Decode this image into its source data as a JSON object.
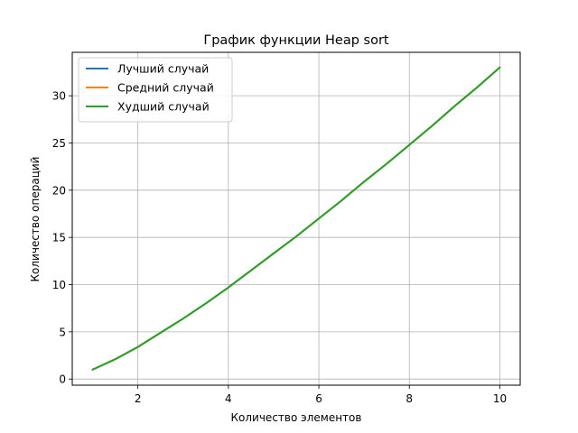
{
  "chart_data": {
    "type": "line",
    "title": "График функции Heap sort",
    "xlabel": "Количество элементов",
    "ylabel": "Количество операций",
    "xlim": [
      0.55,
      10.45
    ],
    "ylim": [
      -0.65,
      34.6
    ],
    "xticks": [
      2,
      4,
      6,
      8,
      10
    ],
    "yticks": [
      0,
      5,
      10,
      15,
      20,
      25,
      30
    ],
    "grid": true,
    "legend_position": "upper-left",
    "x": [
      1,
      1.5,
      2,
      2.5,
      3,
      3.5,
      4,
      4.5,
      5,
      5.5,
      6,
      6.5,
      7,
      7.5,
      8,
      8.5,
      9,
      9.5,
      10
    ],
    "series": [
      {
        "name": "Лучший случай",
        "color": "#1f77b4",
        "values": [
          1.0,
          2.1,
          3.4,
          4.9,
          6.4,
          8.0,
          9.7,
          11.5,
          13.3,
          15.1,
          17.0,
          18.9,
          20.9,
          22.8,
          24.8,
          26.8,
          28.9,
          30.9,
          33.0
        ]
      },
      {
        "name": "Средний случай",
        "color": "#ff7f0e",
        "values": [
          1.0,
          2.1,
          3.4,
          4.9,
          6.4,
          8.0,
          9.7,
          11.5,
          13.3,
          15.1,
          17.0,
          18.9,
          20.9,
          22.8,
          24.8,
          26.8,
          28.9,
          30.9,
          33.0
        ]
      },
      {
        "name": "Худший случай",
        "color": "#2ca02c",
        "values": [
          1.0,
          2.1,
          3.4,
          4.9,
          6.4,
          8.0,
          9.7,
          11.5,
          13.3,
          15.1,
          17.0,
          18.9,
          20.9,
          22.8,
          24.8,
          26.8,
          28.9,
          30.9,
          33.0
        ]
      }
    ]
  }
}
